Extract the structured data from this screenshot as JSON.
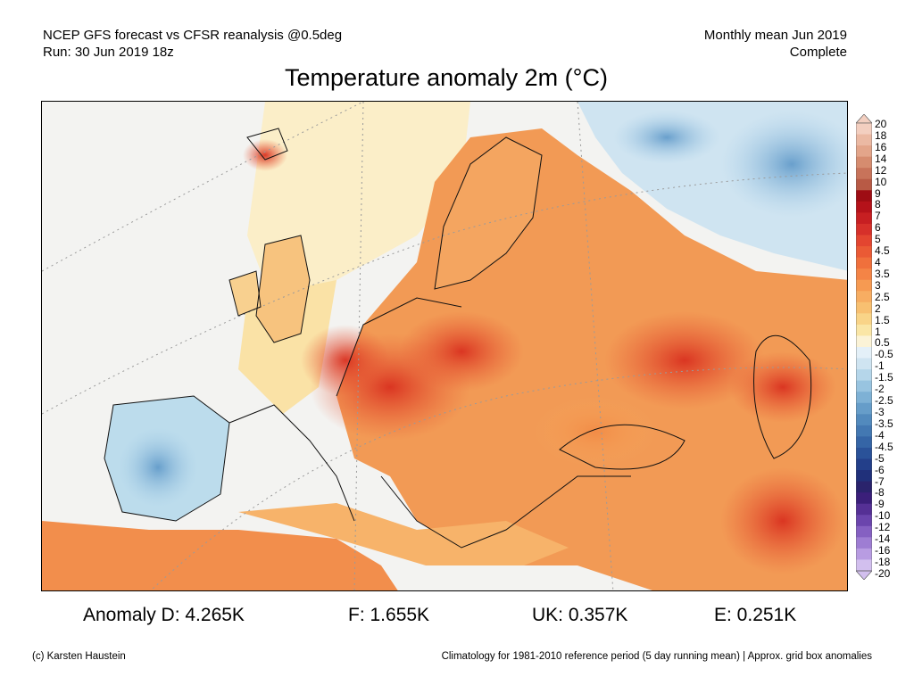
{
  "header": {
    "left_line1": "NCEP GFS forecast vs CFSR reanalysis @0.5deg",
    "left_line2": "Run: 30 Jun 2019 18z",
    "right_line1": "Monthly mean Jun 2019",
    "right_line2": "Complete"
  },
  "title": "Temperature anomaly 2m (°C)",
  "colorbar": {
    "labels": [
      "20",
      "18",
      "16",
      "14",
      "12",
      "10",
      "9",
      "8",
      "7",
      "6",
      "5",
      "4.5",
      "4",
      "3.5",
      "3",
      "2.5",
      "2",
      "1.5",
      "1",
      "0.5",
      "-0.5",
      "-1",
      "-1.5",
      "-2",
      "-2.5",
      "-3",
      "-3.5",
      "-4",
      "-4.5",
      "-5",
      "-6",
      "-7",
      "-8",
      "-9",
      "-10",
      "-12",
      "-14",
      "-16",
      "-18",
      "-20"
    ],
    "colors": [
      "#f3cfc0",
      "#ebb9a3",
      "#e3a58a",
      "#d68c6f",
      "#c8735a",
      "#b85a45",
      "#9e0d14",
      "#b5121a",
      "#c71f22",
      "#d6302a",
      "#e34530",
      "#ea5a35",
      "#f0703c",
      "#f48446",
      "#f69a52",
      "#f7ad62",
      "#f8c071",
      "#f9d488",
      "#fae6a6",
      "#fbf3d7",
      "#e4f0f8",
      "#cfe4f1",
      "#b5d6ea",
      "#98c4e0",
      "#7eb1d5",
      "#669dc9",
      "#528abd",
      "#4378b2",
      "#3565a6",
      "#2a5299",
      "#233f8a",
      "#20307a",
      "#2a236c",
      "#3b1f7a",
      "#553095",
      "#6b45ad",
      "#8560c2",
      "#9e7dd3",
      "#b89ce2",
      "#d2bfee"
    ]
  },
  "stats": {
    "d": "Anomaly D: 4.265K",
    "f": "F: 1.655K",
    "uk": "UK: 0.357K",
    "e": "E: 0.251K"
  },
  "footer": {
    "left": "(c) Karsten Haustein",
    "right": "Climatology for 1981-2010 reference period (5 day running mean) | Approx. grid box anomalies"
  }
}
